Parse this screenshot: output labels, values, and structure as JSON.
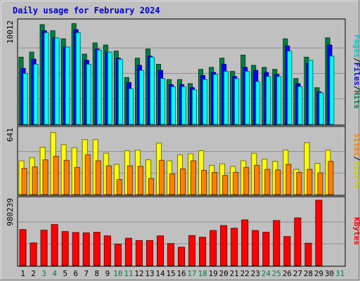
{
  "title": "Daily usage for February 2024",
  "colors": {
    "background": "#c0c0c0",
    "panel": "#c0c0c0",
    "grid": "#8f8f8f",
    "hits": "#008040",
    "files": "#0000ff",
    "pages": "#00ffff",
    "visits": "#ffff00",
    "sites": "#ff8000",
    "kbytes": "#ff0000",
    "weekday_label": "#000000",
    "weekend_label": "#008040",
    "title": "#0000cc"
  },
  "right_labels": {
    "top": [
      {
        "text": "Pages",
        "color": "#00cccc"
      },
      {
        "text": "/",
        "color": "#000000"
      },
      {
        "text": "Files",
        "color": "#0000ff"
      },
      {
        "text": "/",
        "color": "#000000"
      },
      {
        "text": "Hits",
        "color": "#008040"
      }
    ],
    "middle": [
      {
        "text": "Sites",
        "color": "#ff8000"
      },
      {
        "text": "/",
        "color": "#000000"
      },
      {
        "text": "Visits",
        "color": "#cccc00"
      }
    ],
    "bottom": [
      {
        "text": "KBytes",
        "color": "#ff0000"
      }
    ]
  },
  "chart_data": {
    "type": "bar",
    "title": "Daily usage for February 2024",
    "days": [
      "1",
      "2",
      "3",
      "4",
      "5",
      "6",
      "7",
      "8",
      "9",
      "10",
      "11",
      "12",
      "13",
      "14",
      "15",
      "16",
      "17",
      "18",
      "19",
      "20",
      "21",
      "22",
      "23",
      "24",
      "25",
      "26",
      "27",
      "28",
      "29",
      "30",
      "31"
    ],
    "weekend_days": [
      "3",
      "4",
      "10",
      "11",
      "17",
      "18",
      "24",
      "25",
      "31"
    ],
    "panels": [
      {
        "name": "hits-files-pages",
        "ymax_label": "10012",
        "ymax": 10012,
        "series": [
          {
            "name": "Hits",
            "color": "#008040",
            "values": [
              6600,
              7100,
              9800,
              9200,
              8400,
              9900,
              6900,
              8000,
              7800,
              7200,
              4600,
              6500,
              7400,
              5900,
              4400,
              4400,
              4000,
              5400,
              5600,
              6500,
              5200,
              6800,
              5800,
              5600,
              5400,
              8400,
              4500,
              6600,
              3600,
              8500,
              0
            ]
          },
          {
            "name": "Files",
            "color": "#0000ff",
            "values": [
              5500,
              6400,
              9200,
              8500,
              7600,
              9300,
              6300,
              7400,
              7100,
              6500,
              4100,
              5800,
              6700,
              5300,
              3900,
              3900,
              3600,
              4800,
              5100,
              5900,
              4700,
              5600,
              5300,
              5100,
              4900,
              7700,
              4000,
              6000,
              3200,
              7800,
              0
            ]
          },
          {
            "name": "Pages",
            "color": "#00ffff",
            "values": [
              5000,
              5900,
              9000,
              8500,
              7600,
              9000,
              5900,
              7300,
              7100,
              6400,
              3500,
              5300,
              6600,
              4500,
              3700,
              3700,
              3400,
              4400,
              4900,
              5200,
              4500,
              5200,
              4200,
              4700,
              4700,
              7200,
              3700,
              6300,
              3100,
              6700,
              0
            ]
          }
        ]
      },
      {
        "name": "visits-sites",
        "ymax_label": "641",
        "ymax": 641,
        "series": [
          {
            "name": "Visits",
            "color": "#ffff00",
            "values": [
              335,
              365,
              470,
              615,
              495,
              465,
              545,
              545,
              410,
              300,
              435,
              440,
              345,
              510,
              335,
              395,
              405,
              435,
              290,
              305,
              280,
              335,
              410,
              350,
              330,
              440,
              250,
              515,
              310,
              440,
              0
            ]
          },
          {
            "name": "Sites",
            "color": "#ff8000",
            "values": [
              260,
              275,
              345,
              380,
              340,
              270,
              395,
              335,
              285,
              150,
              285,
              280,
              160,
              340,
              205,
              255,
              335,
              240,
              220,
              190,
              220,
              270,
              290,
              250,
              245,
              300,
              220,
              250,
              215,
              330,
              0
            ]
          }
        ]
      },
      {
        "name": "kbytes",
        "ymax_label": "980239",
        "ymax": 980239,
        "series": [
          {
            "name": "KBytes",
            "color": "#ff0000",
            "values": [
              540000,
              340000,
              530000,
              615000,
              510000,
              495000,
              490000,
              500000,
              445000,
              320000,
              410000,
              375000,
              375000,
              445000,
              330000,
              275000,
              450000,
              425000,
              525000,
              600000,
              560000,
              685000,
              525000,
              500000,
              675000,
              435000,
              715000,
              335000,
              980000,
              0,
              0
            ]
          }
        ]
      }
    ]
  }
}
